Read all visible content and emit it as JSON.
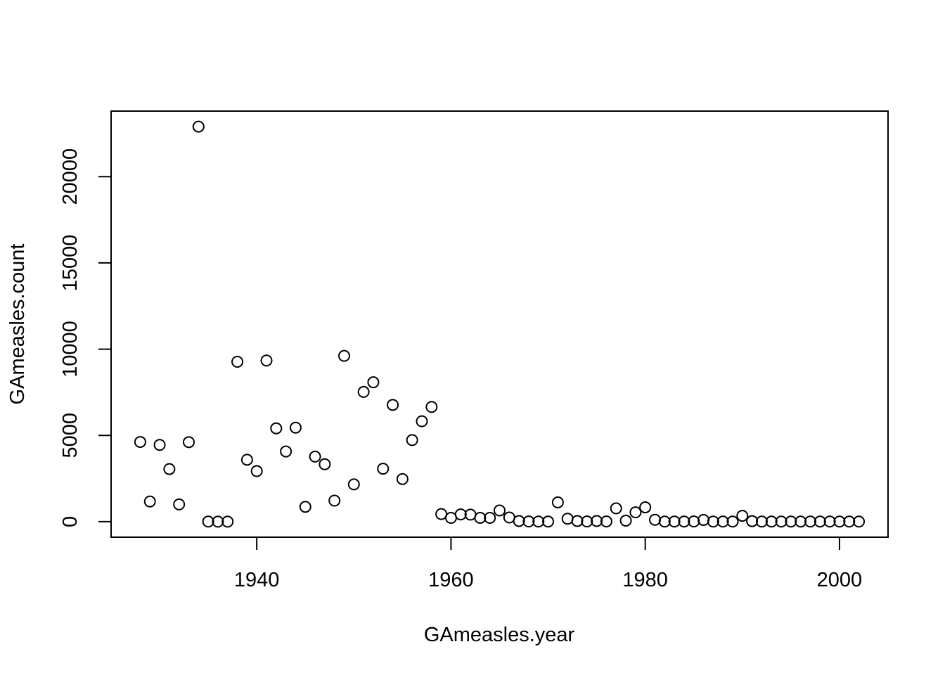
{
  "chart_data": {
    "type": "scatter",
    "title": "",
    "xlabel": "GAmeasles.year",
    "ylabel": "GAmeasles.count",
    "xlim": [
      1925,
      2005
    ],
    "ylim": [
      -900,
      23800
    ],
    "xticks": [
      1940,
      1960,
      1980,
      2000
    ],
    "yticks": [
      0,
      5000,
      10000,
      15000,
      20000
    ],
    "grid": false,
    "legend": "none",
    "marker": "open-circle",
    "series": [
      {
        "x": [
          1928,
          1929,
          1930,
          1931,
          1932,
          1933,
          1934,
          1935,
          1936,
          1937,
          1938,
          1939,
          1940,
          1941,
          1942,
          1943,
          1944,
          1945,
          1946,
          1947,
          1948,
          1949,
          1950,
          1951,
          1952,
          1953,
          1954,
          1955,
          1956,
          1957,
          1958,
          1959,
          1960,
          1961,
          1962,
          1963,
          1964,
          1965,
          1966,
          1967,
          1968,
          1969,
          1970,
          1971,
          1972,
          1973,
          1974,
          1975,
          1976,
          1977,
          1978,
          1979,
          1980,
          1981,
          1982,
          1983,
          1984,
          1985,
          1986,
          1987,
          1988,
          1989,
          1990,
          1991,
          1992,
          1993,
          1994,
          1995,
          1996,
          1997,
          1998,
          1999,
          2000,
          2001,
          2002
        ],
        "y": [
          4620,
          1170,
          4450,
          3050,
          1000,
          4610,
          22900,
          5,
          3,
          3,
          9270,
          3590,
          2930,
          9340,
          5410,
          4070,
          5450,
          860,
          3770,
          3330,
          1220,
          9610,
          2160,
          7520,
          8080,
          3070,
          6770,
          2470,
          4730,
          5820,
          6650,
          440,
          220,
          420,
          410,
          220,
          220,
          650,
          240,
          40,
          10,
          5,
          5,
          1120,
          170,
          40,
          10,
          40,
          10,
          770,
          60,
          540,
          830,
          110,
          5,
          5,
          5,
          10,
          100,
          5,
          5,
          5,
          340,
          30,
          5,
          5,
          5,
          5,
          5,
          5,
          5,
          5,
          5,
          5,
          5
        ]
      }
    ]
  }
}
